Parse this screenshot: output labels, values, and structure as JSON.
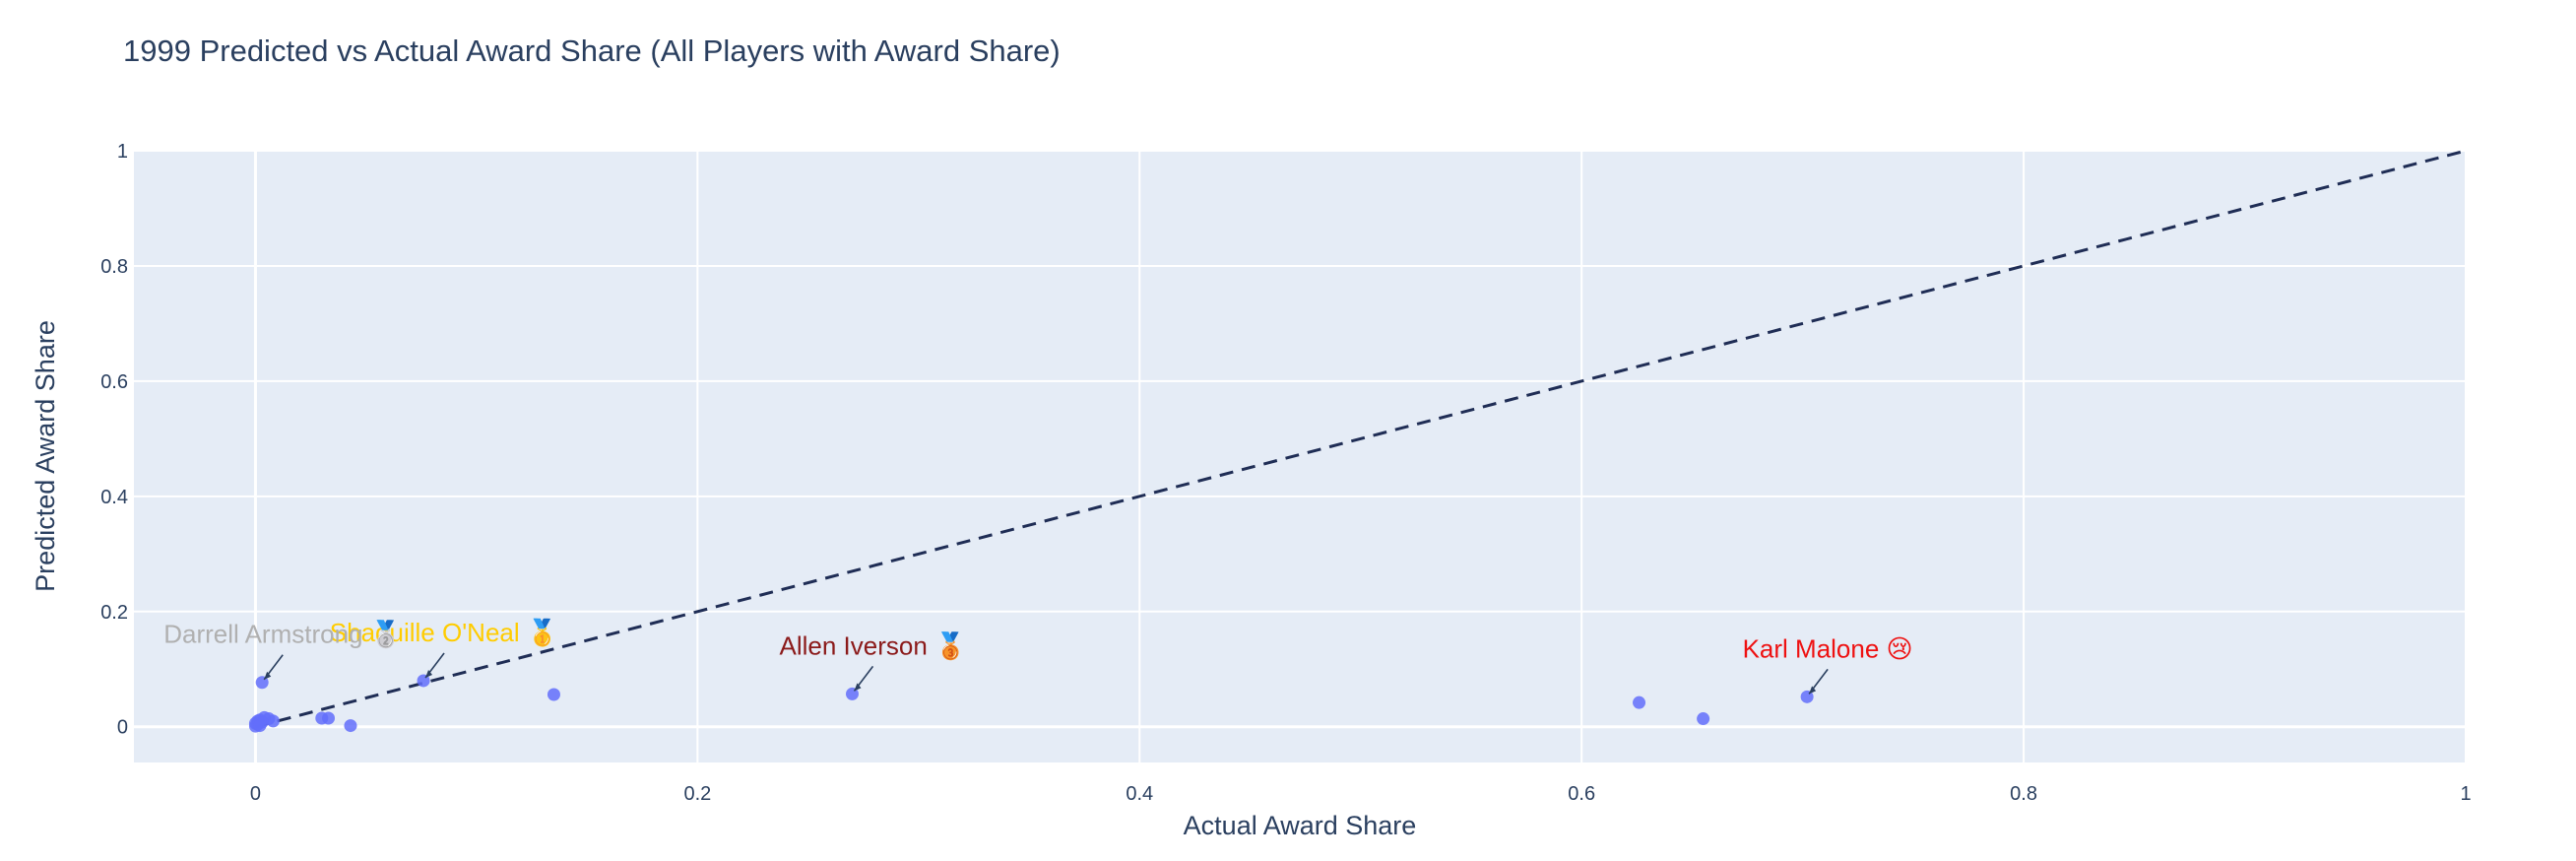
{
  "chart_data": {
    "type": "scatter",
    "title": "1999 Predicted vs Actual Award Share (All Players with Award Share)",
    "xlabel": "Actual Award Share",
    "ylabel": "Predicted Award Share",
    "xlim": [
      -0.055,
      1.0
    ],
    "ylim": [
      -0.062,
      1.0
    ],
    "x_ticks": [
      0,
      0.2,
      0.4,
      0.6,
      0.8,
      1
    ],
    "y_ticks": [
      0,
      0.2,
      0.4,
      0.6,
      0.8,
      1
    ],
    "x_tick_labels": [
      "0",
      "0.2",
      "0.4",
      "0.6",
      "0.8",
      "1"
    ],
    "y_tick_labels": [
      "0",
      "0.2",
      "0.4",
      "0.6",
      "0.8",
      "1"
    ],
    "grid": true,
    "plot_bg": "#e5ecf6",
    "grid_color": "#ffffff",
    "marker_color": "#636efa",
    "diagonal_color": "#1f2d55",
    "points": [
      {
        "x": 0.702,
        "y": 0.052
      },
      {
        "x": 0.655,
        "y": 0.014
      },
      {
        "x": 0.626,
        "y": 0.042
      },
      {
        "x": 0.27,
        "y": 0.057
      },
      {
        "x": 0.135,
        "y": 0.056
      },
      {
        "x": 0.076,
        "y": 0.08
      },
      {
        "x": 0.043,
        "y": 0.002
      },
      {
        "x": 0.033,
        "y": 0.015
      },
      {
        "x": 0.03,
        "y": 0.015
      },
      {
        "x": 0.008,
        "y": 0.01
      },
      {
        "x": 0.006,
        "y": 0.014
      },
      {
        "x": 0.004,
        "y": 0.016
      },
      {
        "x": 0.003,
        "y": 0.077
      },
      {
        "x": 0.003,
        "y": 0.008
      },
      {
        "x": 0.002,
        "y": 0.012
      },
      {
        "x": 0.001,
        "y": 0.004
      },
      {
        "x": 0.001,
        "y": 0.01
      },
      {
        "x": 0.0,
        "y": 0.006
      },
      {
        "x": 0.0,
        "y": 0.001
      },
      {
        "x": 0.002,
        "y": 0.002
      }
    ],
    "annotations": [
      {
        "text": "Karl Malone 😢",
        "x": 0.702,
        "y": 0.052,
        "color": "#ee1111"
      },
      {
        "text": "Allen Iverson 🥉",
        "x": 0.27,
        "y": 0.057,
        "color": "#8b1a1a"
      },
      {
        "text": "Shaquille O'Neal 🥇",
        "x": 0.076,
        "y": 0.08,
        "color": "#ffcc00"
      },
      {
        "text": "Darrell Armstrong 🥈",
        "x": 0.003,
        "y": 0.077,
        "color": "#b0b0b0"
      }
    ]
  }
}
